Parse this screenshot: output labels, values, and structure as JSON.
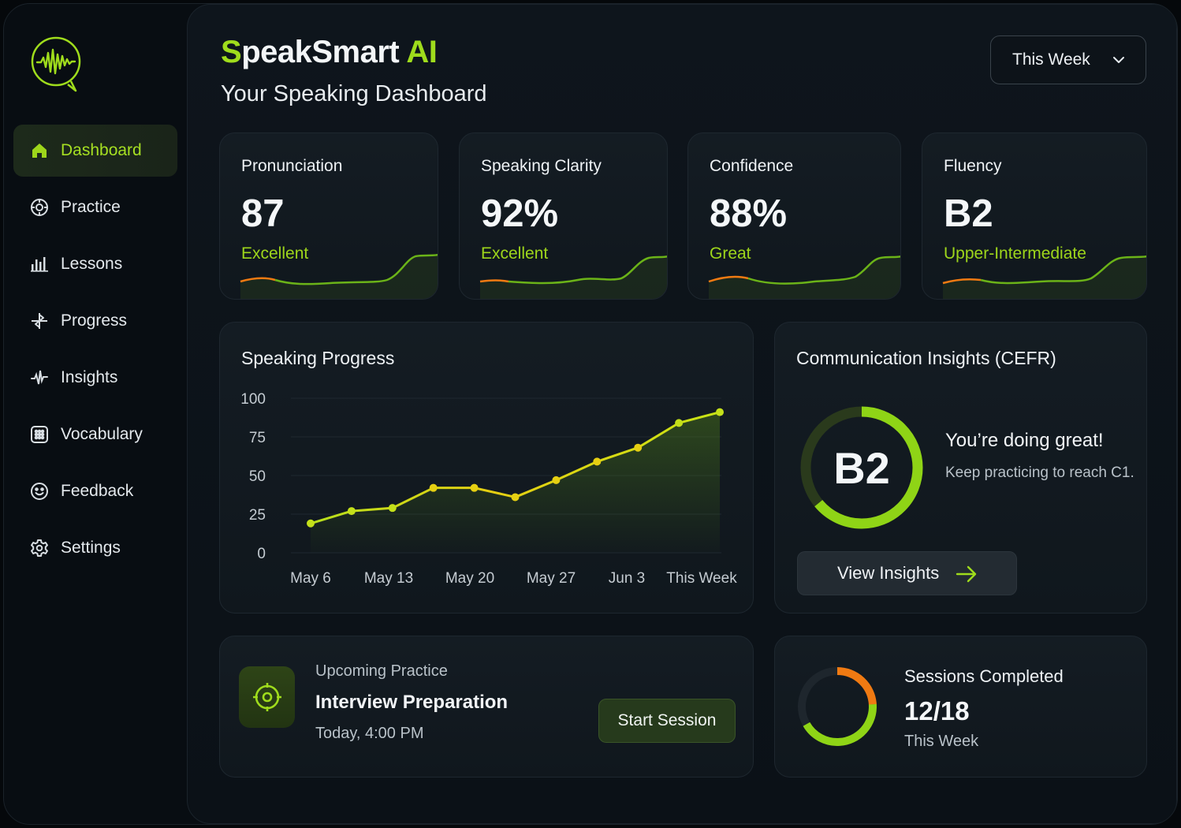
{
  "brand": {
    "prefix": "S",
    "middle": "peakSmart ",
    "suffix": "AI"
  },
  "subtitle": "Your Speaking Dashboard",
  "period_select": {
    "value": "This Week"
  },
  "sidebar": {
    "items": [
      {
        "label": "Dashboard",
        "icon": "home-icon",
        "active": true
      },
      {
        "label": "Practice",
        "icon": "target-icon"
      },
      {
        "label": "Lessons",
        "icon": "bars-icon"
      },
      {
        "label": "Progress",
        "icon": "progress-icon"
      },
      {
        "label": "Insights",
        "icon": "insights-icon"
      },
      {
        "label": "Vocabulary",
        "icon": "grid-icon"
      },
      {
        "label": "Feedback",
        "icon": "smile-icon"
      },
      {
        "label": "Settings",
        "icon": "gear-icon"
      }
    ]
  },
  "metrics": [
    {
      "label": "Pronunciation",
      "value": "87",
      "status": "Excellent"
    },
    {
      "label": "Speaking Clarity",
      "value": "92%",
      "status": "Excellent"
    },
    {
      "label": "Confidence",
      "value": "88%",
      "status": "Great"
    },
    {
      "label": "Fluency",
      "value": "B2",
      "status": "Upper-Intermediate"
    }
  ],
  "progress_card": {
    "title": "Speaking Progress"
  },
  "chart_data": {
    "type": "line",
    "title": "Speaking Progress",
    "x_tick_labels": [
      "May 6",
      "May 13",
      "May 20",
      "May 27",
      "Jun 3",
      "This Week"
    ],
    "y_ticks": [
      0,
      25,
      50,
      75,
      100
    ],
    "ylim": [
      0,
      100
    ],
    "points": [
      19,
      27,
      29,
      42,
      42,
      36,
      47,
      59,
      68,
      84,
      91
    ],
    "grid": true,
    "legend": "none"
  },
  "insights_card": {
    "title": "Communication Insights (CEFR)",
    "level": "B2",
    "level_progress": 0.64,
    "headline": "You’re doing great!",
    "message": "Keep practicing to reach C1.",
    "button": "View Insights"
  },
  "upcoming": {
    "label": "Upcoming Practice",
    "title": "Interview Preparation",
    "time": "Today, 4:00 PM",
    "button": "Start Session"
  },
  "sessions": {
    "label": "Sessions Completed",
    "value": "12/18",
    "sub": "This Week",
    "completed": 12,
    "total": 18
  },
  "colors": {
    "accent": "#9fdc1c",
    "accent_orange": "#f07a12",
    "line_yellow": "#e6cf12"
  }
}
